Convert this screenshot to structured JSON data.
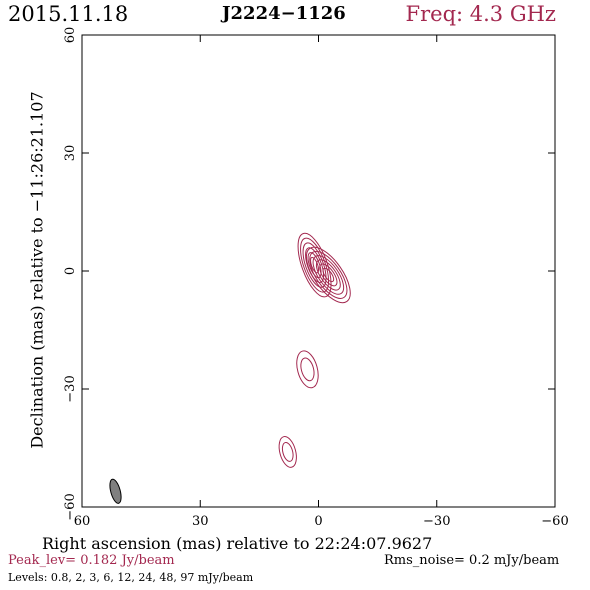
{
  "header": {
    "date": "2015.11.18",
    "source": "J2224−1126",
    "frequency": "Freq: 4.3 GHz"
  },
  "footer": {
    "peak_label": "Peak_lev=",
    "peak_value": "0.182 Jy/beam",
    "rms_label": "Rms_noise=",
    "rms_value": "0.2 mJy/beam",
    "levels_label": "Levels:",
    "levels": "0.8,   2,   3,   6,  12,  24,  48,  97 mJy/beam"
  },
  "colors": {
    "contour": "#a3284f",
    "beam_fill": "#808080",
    "frame": "#000000"
  },
  "chart_data": {
    "type": "contour",
    "xlabel": "Right ascension (mas) relative to 22:24:07.9627",
    "ylabel": "Declination (mas) relative to −11:26:21.107",
    "xlim": [
      60,
      -60
    ],
    "ylim": [
      -60,
      60
    ],
    "xticks": [
      60,
      30,
      0,
      -30,
      -60
    ],
    "yticks": [
      -60,
      -30,
      0,
      30,
      60
    ],
    "xtick_labels": [
      "60",
      "30",
      "0",
      "−30",
      "−60"
    ],
    "ytick_labels": [
      "−60",
      "−30",
      "0",
      "30",
      "60"
    ],
    "levels_mJy_per_beam": [
      0.8,
      2,
      3,
      6,
      12,
      24,
      48,
      97
    ],
    "peak_Jy_per_beam": 0.182,
    "rms_noise_mJy_per_beam": 0.2,
    "components": [
      {
        "name": "core",
        "x": 1,
        "y": 1.5,
        "rx": 3.2,
        "ry": 8.5,
        "pa_deg": -20,
        "nlev": 6
      },
      {
        "name": "jet-inner",
        "x": -2.5,
        "y": -1,
        "rx": 3.6,
        "ry": 8.2,
        "pa_deg": -35,
        "nlev": 6
      },
      {
        "name": "knot-1",
        "x": 2.8,
        "y": -25,
        "rx": 2.5,
        "ry": 4.8,
        "pa_deg": -15,
        "nlev": 2
      },
      {
        "name": "knot-2",
        "x": 7.8,
        "y": -46,
        "rx": 2.0,
        "ry": 4.0,
        "pa_deg": -15,
        "nlev": 2
      }
    ],
    "beam": {
      "x": 51.5,
      "y": -56,
      "major": 6.3,
      "minor": 2.4,
      "pa_deg": -15
    }
  }
}
